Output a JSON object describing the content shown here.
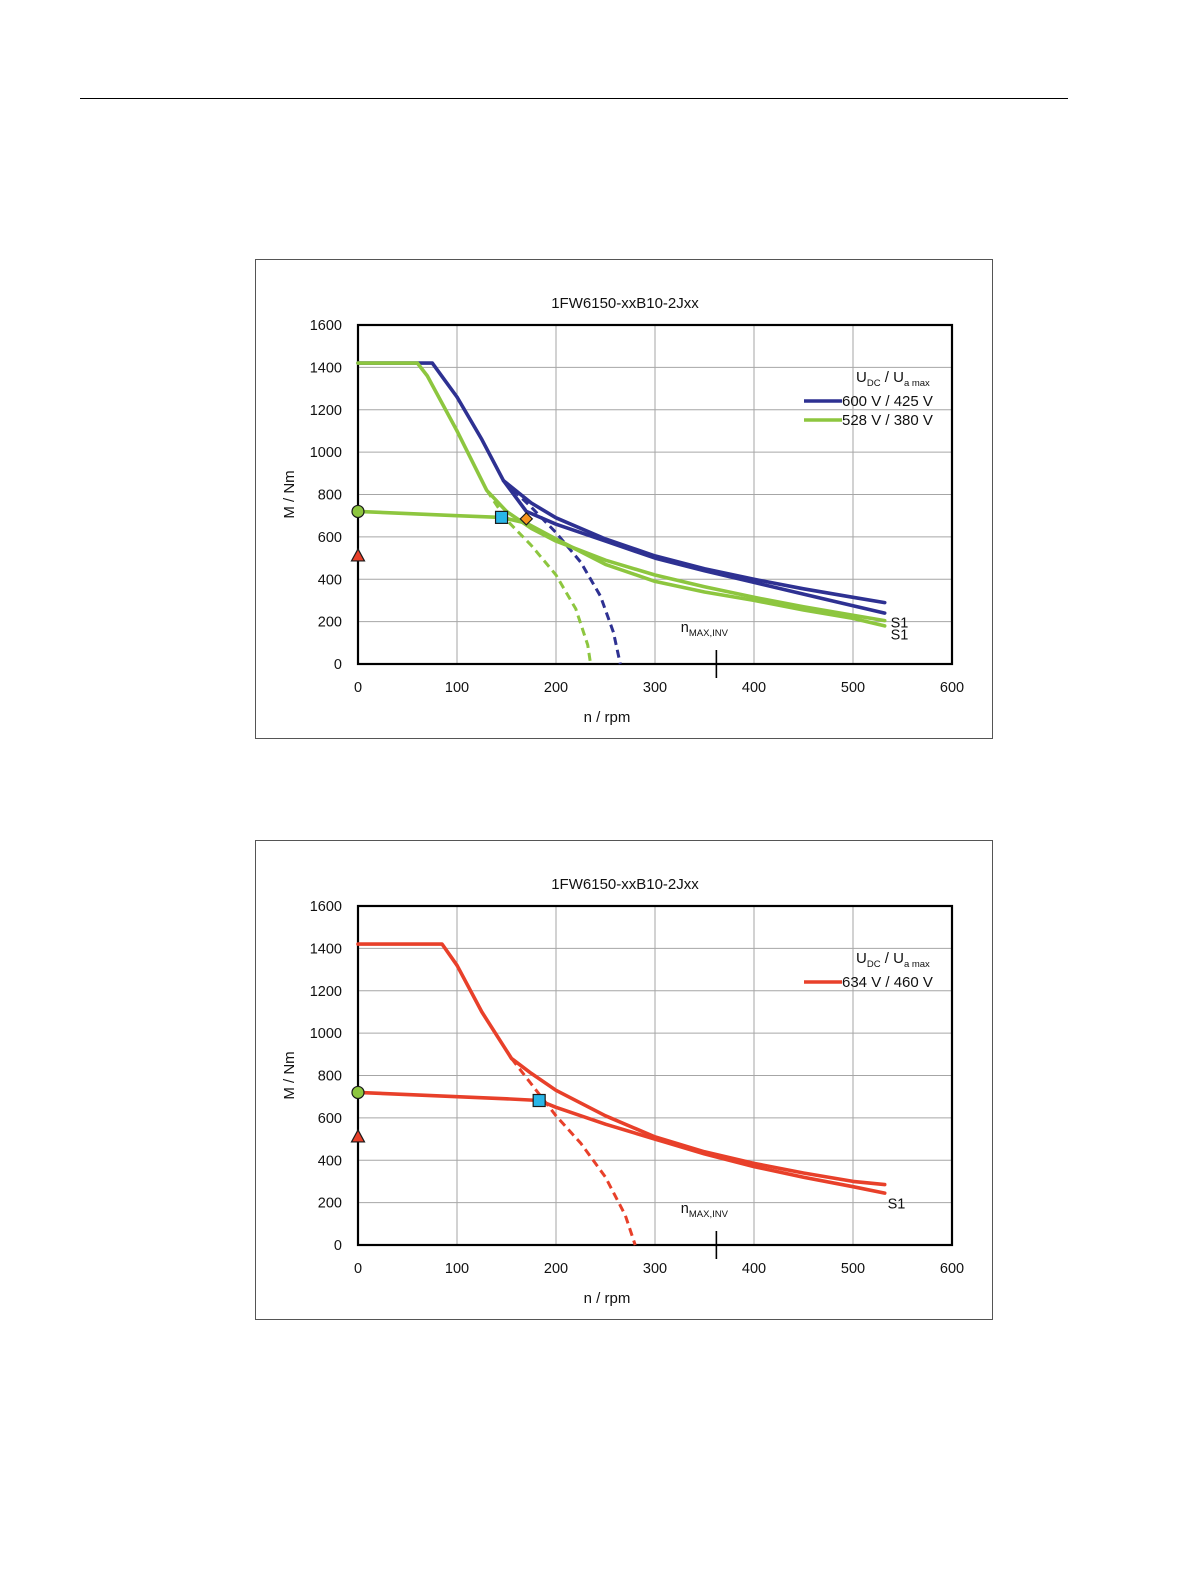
{
  "chart_data": [
    {
      "type": "line",
      "title": "1FW6150-xxB10-2Jxx",
      "xlabel": "n / rpm",
      "ylabel": "M / Nm",
      "xlim": [
        0,
        600
      ],
      "ylim": [
        0,
        1600
      ],
      "xticks": [
        0,
        100,
        200,
        300,
        400,
        500,
        600
      ],
      "yticks": [
        0,
        200,
        400,
        600,
        800,
        1000,
        1200,
        1400,
        1600
      ],
      "grid": true,
      "legend": {
        "position": "top-right",
        "header": {
          "u_main": "U",
          "u_sub": "DC",
          "sep": "/",
          "u2_main": "U",
          "u2_sub": "a max"
        },
        "entries": [
          {
            "label": "600 V / 425 V",
            "color": "#2e3192"
          },
          {
            "label": "528 V / 380 V",
            "color": "#8dc63f"
          }
        ]
      },
      "nmax": {
        "x": 362,
        "label_main": "n",
        "label_sub": "MAX,INV"
      },
      "series": [
        {
          "series": 0,
          "color": "#2e3192",
          "dashed": false,
          "points": [
            [
              0,
              1420
            ],
            [
              75,
              1420
            ],
            [
              100,
              1260
            ],
            [
              125,
              1060
            ],
            [
              147,
              865
            ],
            [
              175,
              760
            ],
            [
              200,
              690
            ],
            [
              250,
              590
            ],
            [
              300,
              510
            ],
            [
              350,
              450
            ],
            [
              400,
              400
            ],
            [
              450,
              355
            ],
            [
              500,
              315
            ],
            [
              532,
              290
            ]
          ]
        },
        {
          "series": 0,
          "color": "#2e3192",
          "dashed": false,
          "points": [
            [
              147,
              865
            ],
            [
              170,
              720
            ],
            [
              200,
              660
            ],
            [
              250,
              580
            ],
            [
              300,
              500
            ],
            [
              350,
              440
            ],
            [
              400,
              385
            ],
            [
              450,
              330
            ],
            [
              500,
              275
            ],
            [
              532,
              240
            ]
          ]
        },
        {
          "series": 0,
          "color": "#2e3192",
          "dashed": true,
          "points": [
            [
              147,
              865
            ],
            [
              175,
              740
            ],
            [
              200,
              620
            ],
            [
              225,
              480
            ],
            [
              245,
              320
            ],
            [
              258,
              150
            ],
            [
              265,
              0
            ]
          ]
        },
        {
          "series": 1,
          "color": "#8dc63f",
          "dashed": false,
          "points": [
            [
              0,
              1420
            ],
            [
              60,
              1420
            ],
            [
              70,
              1360
            ],
            [
              100,
              1100
            ],
            [
              130,
              820
            ],
            [
              150,
              720
            ],
            [
              175,
              640
            ],
            [
              200,
              580
            ],
            [
              250,
              490
            ],
            [
              300,
              420
            ],
            [
              350,
              365
            ],
            [
              400,
              315
            ],
            [
              450,
              270
            ],
            [
              500,
              230
            ],
            [
              532,
              205
            ]
          ]
        },
        {
          "series": 1,
          "color": "#8dc63f",
          "dashed": false,
          "points": [
            [
              0,
              720
            ],
            [
              50,
              710
            ],
            [
              100,
              700
            ],
            [
              145,
              692
            ],
            [
              170,
              665
            ],
            [
              200,
              590
            ],
            [
              250,
              470
            ],
            [
              300,
              390
            ],
            [
              350,
              340
            ],
            [
              400,
              300
            ],
            [
              450,
              255
            ],
            [
              500,
              215
            ],
            [
              532,
              180
            ]
          ]
        },
        {
          "series": 1,
          "color": "#8dc63f",
          "dashed": true,
          "points": [
            [
              130,
              820
            ],
            [
              150,
              680
            ],
            [
              175,
              560
            ],
            [
              200,
              420
            ],
            [
              220,
              260
            ],
            [
              232,
              90
            ],
            [
              235,
              0
            ]
          ]
        }
      ],
      "markers": [
        {
          "shape": "circle",
          "x": 0,
          "y": 720,
          "color": "#8dc63f"
        },
        {
          "shape": "triangle",
          "x": 0,
          "y": 510,
          "color": "#e8402a"
        },
        {
          "shape": "square",
          "x": 145,
          "y": 692,
          "color": "#29b6e8"
        },
        {
          "shape": "diamond",
          "x": 170,
          "y": 685,
          "color": "#f7941d"
        }
      ],
      "curve_labels": [
        {
          "text": "S1",
          "x": 538,
          "y": 195
        },
        {
          "text": "S1",
          "x": 538,
          "y": 140
        }
      ]
    },
    {
      "type": "line",
      "title": "1FW6150-xxB10-2Jxx",
      "xlabel": "n / rpm",
      "ylabel": "M / Nm",
      "xlim": [
        0,
        600
      ],
      "ylim": [
        0,
        1600
      ],
      "xticks": [
        0,
        100,
        200,
        300,
        400,
        500,
        600
      ],
      "yticks": [
        0,
        200,
        400,
        600,
        800,
        1000,
        1200,
        1400,
        1600
      ],
      "grid": true,
      "legend": {
        "position": "top-right",
        "header": {
          "u_main": "U",
          "u_sub": "DC",
          "sep": "/",
          "u2_main": "U",
          "u2_sub": "a max"
        },
        "entries": [
          {
            "label": "634 V / 460 V",
            "color": "#e8402a"
          }
        ]
      },
      "nmax": {
        "x": 362,
        "label_main": "n",
        "label_sub": "MAX,INV"
      },
      "series": [
        {
          "series": 0,
          "color": "#e8402a",
          "dashed": false,
          "points": [
            [
              0,
              1420
            ],
            [
              85,
              1420
            ],
            [
              100,
              1320
            ],
            [
              125,
              1100
            ],
            [
              155,
              880
            ],
            [
              175,
              810
            ],
            [
              200,
              730
            ],
            [
              250,
              610
            ],
            [
              300,
              510
            ],
            [
              350,
              440
            ],
            [
              400,
              385
            ],
            [
              450,
              340
            ],
            [
              500,
              300
            ],
            [
              532,
              285
            ]
          ]
        },
        {
          "series": 0,
          "color": "#e8402a",
          "dashed": false,
          "points": [
            [
              0,
              720
            ],
            [
              50,
              710
            ],
            [
              100,
              700
            ],
            [
              150,
              690
            ],
            [
              183,
              682
            ],
            [
              200,
              650
            ],
            [
              250,
              570
            ],
            [
              300,
              500
            ],
            [
              350,
              430
            ],
            [
              400,
              370
            ],
            [
              450,
              320
            ],
            [
              500,
              275
            ],
            [
              532,
              245
            ]
          ]
        },
        {
          "series": 0,
          "color": "#e8402a",
          "dashed": true,
          "points": [
            [
              155,
              880
            ],
            [
              175,
              760
            ],
            [
              200,
              610
            ],
            [
              225,
              480
            ],
            [
              250,
              320
            ],
            [
              270,
              140
            ],
            [
              280,
              0
            ]
          ]
        }
      ],
      "markers": [
        {
          "shape": "circle",
          "x": 0,
          "y": 720,
          "color": "#8dc63f"
        },
        {
          "shape": "triangle",
          "x": 0,
          "y": 510,
          "color": "#e8402a"
        },
        {
          "shape": "square",
          "x": 183,
          "y": 682,
          "color": "#29b6e8"
        }
      ],
      "curve_labels": [
        {
          "text": "S1",
          "x": 535,
          "y": 195
        }
      ]
    }
  ]
}
